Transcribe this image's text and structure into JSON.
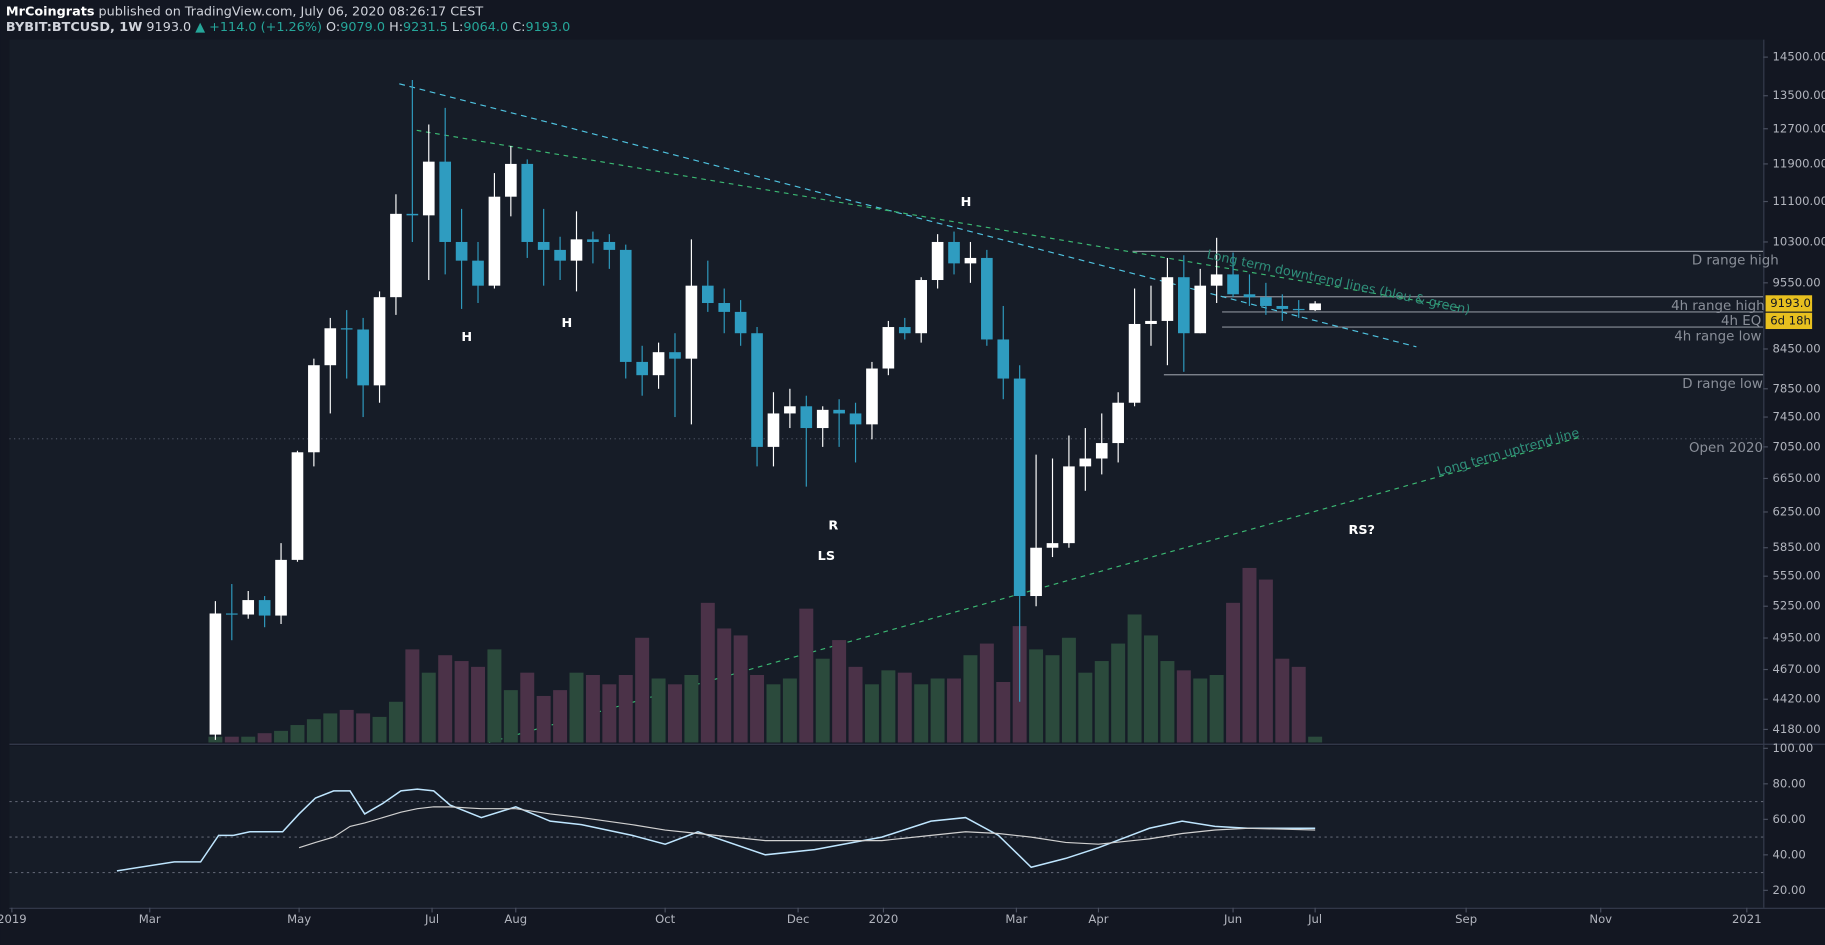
{
  "header": {
    "author": "MrCoingrats",
    "published": "published on TradingView.com, July 06, 2020 08:26:17 CEST",
    "symbol": "BYBIT:BTCUSD, 1W",
    "price": "9193.0",
    "change": "▲ +114.0 (+1.26%)",
    "o_label": "O:",
    "o": "9079.0",
    "h_label": "H:",
    "h": "9231.5",
    "l_label": "L:",
    "l": "9064.0",
    "c_label": "C:",
    "c": "9193.0",
    "countdown": "6d 18h"
  },
  "chart_data": [
    {
      "type": "candlestick",
      "log_scale": true,
      "xlim": [
        -0.55,
        106.3
      ],
      "ylim": [
        4080,
        14850
      ],
      "up_color": "#ffffff",
      "down_color": "#2f9cc0",
      "volume_up_color": "#2b4a3c",
      "volume_down_color": "#4b3248",
      "yticks": [
        {
          "value": 14500,
          "label": "14500.00"
        },
        {
          "value": 13500,
          "label": "13500.00"
        },
        {
          "value": 12700,
          "label": "12700.00"
        },
        {
          "value": 11900,
          "label": "11900.00"
        },
        {
          "value": 11100,
          "label": "11100.00"
        },
        {
          "value": 10300,
          "label": "10300.00"
        },
        {
          "value": 9550,
          "label": "9550.00"
        },
        {
          "value": 8450,
          "label": "8450.00"
        },
        {
          "value": 7850,
          "label": "7850.00"
        },
        {
          "value": 7450,
          "label": "7450.00"
        },
        {
          "value": 7050,
          "label": "7050.00"
        },
        {
          "value": 6650,
          "label": "6650.00"
        },
        {
          "value": 6250,
          "label": "6250.00"
        },
        {
          "value": 5850,
          "label": "5850.00"
        },
        {
          "value": 5550,
          "label": "5550.00"
        },
        {
          "value": 5250,
          "label": "5250.00"
        },
        {
          "value": 4950,
          "label": "4950.00"
        },
        {
          "value": 4670,
          "label": "4670.00"
        },
        {
          "value": 4420,
          "label": "4420.00"
        },
        {
          "value": 4180,
          "label": "4180.00"
        }
      ],
      "x": [
        12,
        13,
        14,
        15,
        16,
        17,
        18,
        19,
        20,
        21,
        22,
        23,
        24,
        25,
        26,
        27,
        28,
        29,
        30,
        31,
        32,
        33,
        34,
        35,
        36,
        37,
        38,
        39,
        40,
        41,
        42,
        43,
        44,
        45,
        46,
        47,
        48,
        49,
        50,
        51,
        52,
        53,
        54,
        55,
        56,
        57,
        58,
        59,
        60,
        61,
        62,
        63,
        64,
        65,
        66,
        67,
        68,
        69,
        70,
        71,
        72,
        73,
        74,
        75,
        76,
        77,
        78,
        79
      ],
      "open": [
        4140,
        5180,
        5170,
        5310,
        5160,
        5720,
        6980,
        8200,
        8780,
        8760,
        7900,
        9300,
        10850,
        10820,
        11950,
        10300,
        9950,
        9500,
        11200,
        11900,
        10300,
        10150,
        9950,
        10350,
        10300,
        10150,
        8250,
        8050,
        8400,
        8300,
        9500,
        9200,
        9050,
        8700,
        7050,
        7500,
        7600,
        7300,
        7550,
        7500,
        7350,
        8150,
        8800,
        8700,
        9600,
        10300,
        9900,
        10000,
        8600,
        8000,
        5350,
        5850,
        5900,
        6800,
        6900,
        7100,
        7650,
        8850,
        8900,
        9650,
        8700,
        9500,
        9700,
        9350,
        9300,
        9150,
        9100,
        9079
      ],
      "high": [
        5300,
        5470,
        5400,
        5350,
        5900,
        7000,
        8300,
        8950,
        9080,
        8950,
        9400,
        11250,
        13900,
        12800,
        13200,
        10950,
        10300,
        11700,
        12300,
        12000,
        10950,
        10400,
        10900,
        10500,
        10450,
        10250,
        8500,
        8550,
        8700,
        10350,
        9950,
        9450,
        9250,
        8800,
        7800,
        7850,
        7750,
        7600,
        7700,
        7650,
        8250,
        8900,
        8950,
        9650,
        10450,
        10500,
        10300,
        10150,
        9150,
        8200,
        6950,
        6900,
        7200,
        7300,
        7500,
        7800,
        9450,
        9500,
        10000,
        10050,
        9800,
        10380,
        10100,
        9700,
        9550,
        9350,
        9250,
        9231.5
      ],
      "low": [
        4100,
        4930,
        5130,
        5050,
        5080,
        5700,
        6800,
        7500,
        8000,
        7450,
        7650,
        9000,
        10300,
        9600,
        9700,
        9100,
        9200,
        9450,
        10800,
        10000,
        9500,
        9600,
        9400,
        9900,
        9800,
        8000,
        7750,
        7850,
        7450,
        7350,
        9050,
        8700,
        8500,
        6800,
        6800,
        7300,
        6550,
        7050,
        7050,
        6850,
        7150,
        8050,
        8600,
        8550,
        9450,
        9700,
        9550,
        8500,
        7700,
        4400,
        5250,
        5750,
        5850,
        6500,
        6700,
        6850,
        7600,
        8500,
        8200,
        8100,
        8700,
        9200,
        9300,
        9150,
        9000,
        8900,
        8950,
        9064
      ],
      "close": [
        5180,
        5170,
        5310,
        5160,
        5720,
        6980,
        8200,
        8780,
        8760,
        7900,
        9300,
        10850,
        10820,
        11950,
        10300,
        9950,
        9500,
        11200,
        11900,
        10300,
        10150,
        9950,
        10350,
        10300,
        10150,
        8250,
        8050,
        8400,
        8300,
        9500,
        9200,
        9050,
        8700,
        7050,
        7500,
        7600,
        7300,
        7550,
        7500,
        7350,
        8150,
        8800,
        8700,
        9600,
        10300,
        9900,
        10000,
        8600,
        8000,
        5350,
        5850,
        5900,
        6800,
        6900,
        7100,
        7650,
        8850,
        8900,
        9650,
        8700,
        9500,
        9700,
        9350,
        9300,
        9150,
        9100,
        9079,
        9193
      ],
      "volume": [
        5,
        5,
        5,
        8,
        10,
        15,
        20,
        25,
        28,
        25,
        22,
        35,
        80,
        60,
        75,
        70,
        65,
        80,
        45,
        60,
        40,
        45,
        60,
        58,
        50,
        58,
        90,
        55,
        50,
        58,
        120,
        98,
        92,
        58,
        50,
        55,
        115,
        72,
        88,
        65,
        50,
        62,
        60,
        50,
        55,
        55,
        75,
        85,
        52,
        100,
        80,
        75,
        90,
        60,
        70,
        85,
        110,
        92,
        70,
        62,
        55,
        58,
        120,
        150,
        140,
        72,
        65,
        5
      ],
      "annotations": [
        "H",
        "H",
        "H",
        "R",
        "LS",
        "RS?",
        "Long term downtrend lines (bleu & green)",
        "Long term uptrend line",
        "D range high",
        "4h range high",
        "4h EQ",
        "4h range low",
        "D range low",
        "Open 2020"
      ]
    },
    {
      "type": "line",
      "xlim": [
        -0.55,
        106.3
      ],
      "ylim": [
        10.2,
        100
      ],
      "yticks": [
        {
          "value": 100,
          "label": "100.00"
        },
        {
          "value": 80,
          "label": "80.00"
        },
        {
          "value": 60,
          "label": "60.00"
        },
        {
          "value": 40,
          "label": "40.00"
        },
        {
          "value": 20,
          "label": "20.00"
        }
      ],
      "levels": [
        70,
        50,
        30
      ],
      "xticks": [
        {
          "value": -0.4,
          "label": "2019"
        },
        {
          "value": 8.0,
          "label": "Mar"
        },
        {
          "value": 17.1,
          "label": "May"
        },
        {
          "value": 25.2,
          "label": "Jul"
        },
        {
          "value": 30.3,
          "label": "Aug"
        },
        {
          "value": 39.4,
          "label": "Oct"
        },
        {
          "value": 47.5,
          "label": "Dec"
        },
        {
          "value": 52.7,
          "label": "2020"
        },
        {
          "value": 60.8,
          "label": "Mar"
        },
        {
          "value": 65.8,
          "label": "Apr"
        },
        {
          "value": 74.0,
          "label": "Jun"
        },
        {
          "value": 79.0,
          "label": "Jul"
        },
        {
          "value": 88.2,
          "label": "Sep"
        },
        {
          "value": 96.4,
          "label": "Nov"
        },
        {
          "value": 105.3,
          "label": "2021"
        }
      ],
      "x": [
        6.0,
        9.5,
        11.1,
        12.2,
        13.1,
        14.1,
        16.1,
        17.1,
        18.1,
        19.2,
        20.2,
        21.1,
        22.2,
        23.3,
        24.3,
        25.3,
        26.3,
        28.2,
        30.3,
        32.4,
        34.3,
        37.4,
        39.4,
        41.4,
        45.5,
        48.5,
        52.6,
        55.6,
        57.7,
        59.7,
        61.7,
        63.8,
        65.8,
        68.9,
        70.9,
        72.9,
        74.9,
        79.0
      ],
      "series": [
        {
          "color": "#bfe6ff",
          "values": [
            31,
            36,
            36,
            51,
            51,
            53,
            53,
            63,
            72,
            76,
            76,
            63,
            69,
            76,
            77,
            76,
            68,
            61,
            67,
            59,
            57,
            51,
            46,
            53,
            40,
            43,
            50,
            59,
            61,
            51,
            33,
            38,
            44,
            55,
            59,
            56,
            55,
            55
          ]
        },
        {
          "color": "#d0d0d0",
          "values": [
            null,
            null,
            null,
            null,
            null,
            null,
            null,
            44,
            47,
            50,
            56,
            58,
            61,
            64,
            66,
            67,
            67,
            66,
            66,
            63,
            61,
            57,
            54,
            52,
            48,
            48,
            48,
            51,
            53,
            52,
            50,
            47,
            46,
            49,
            52,
            54,
            55,
            54
          ]
        }
      ]
    }
  ]
}
